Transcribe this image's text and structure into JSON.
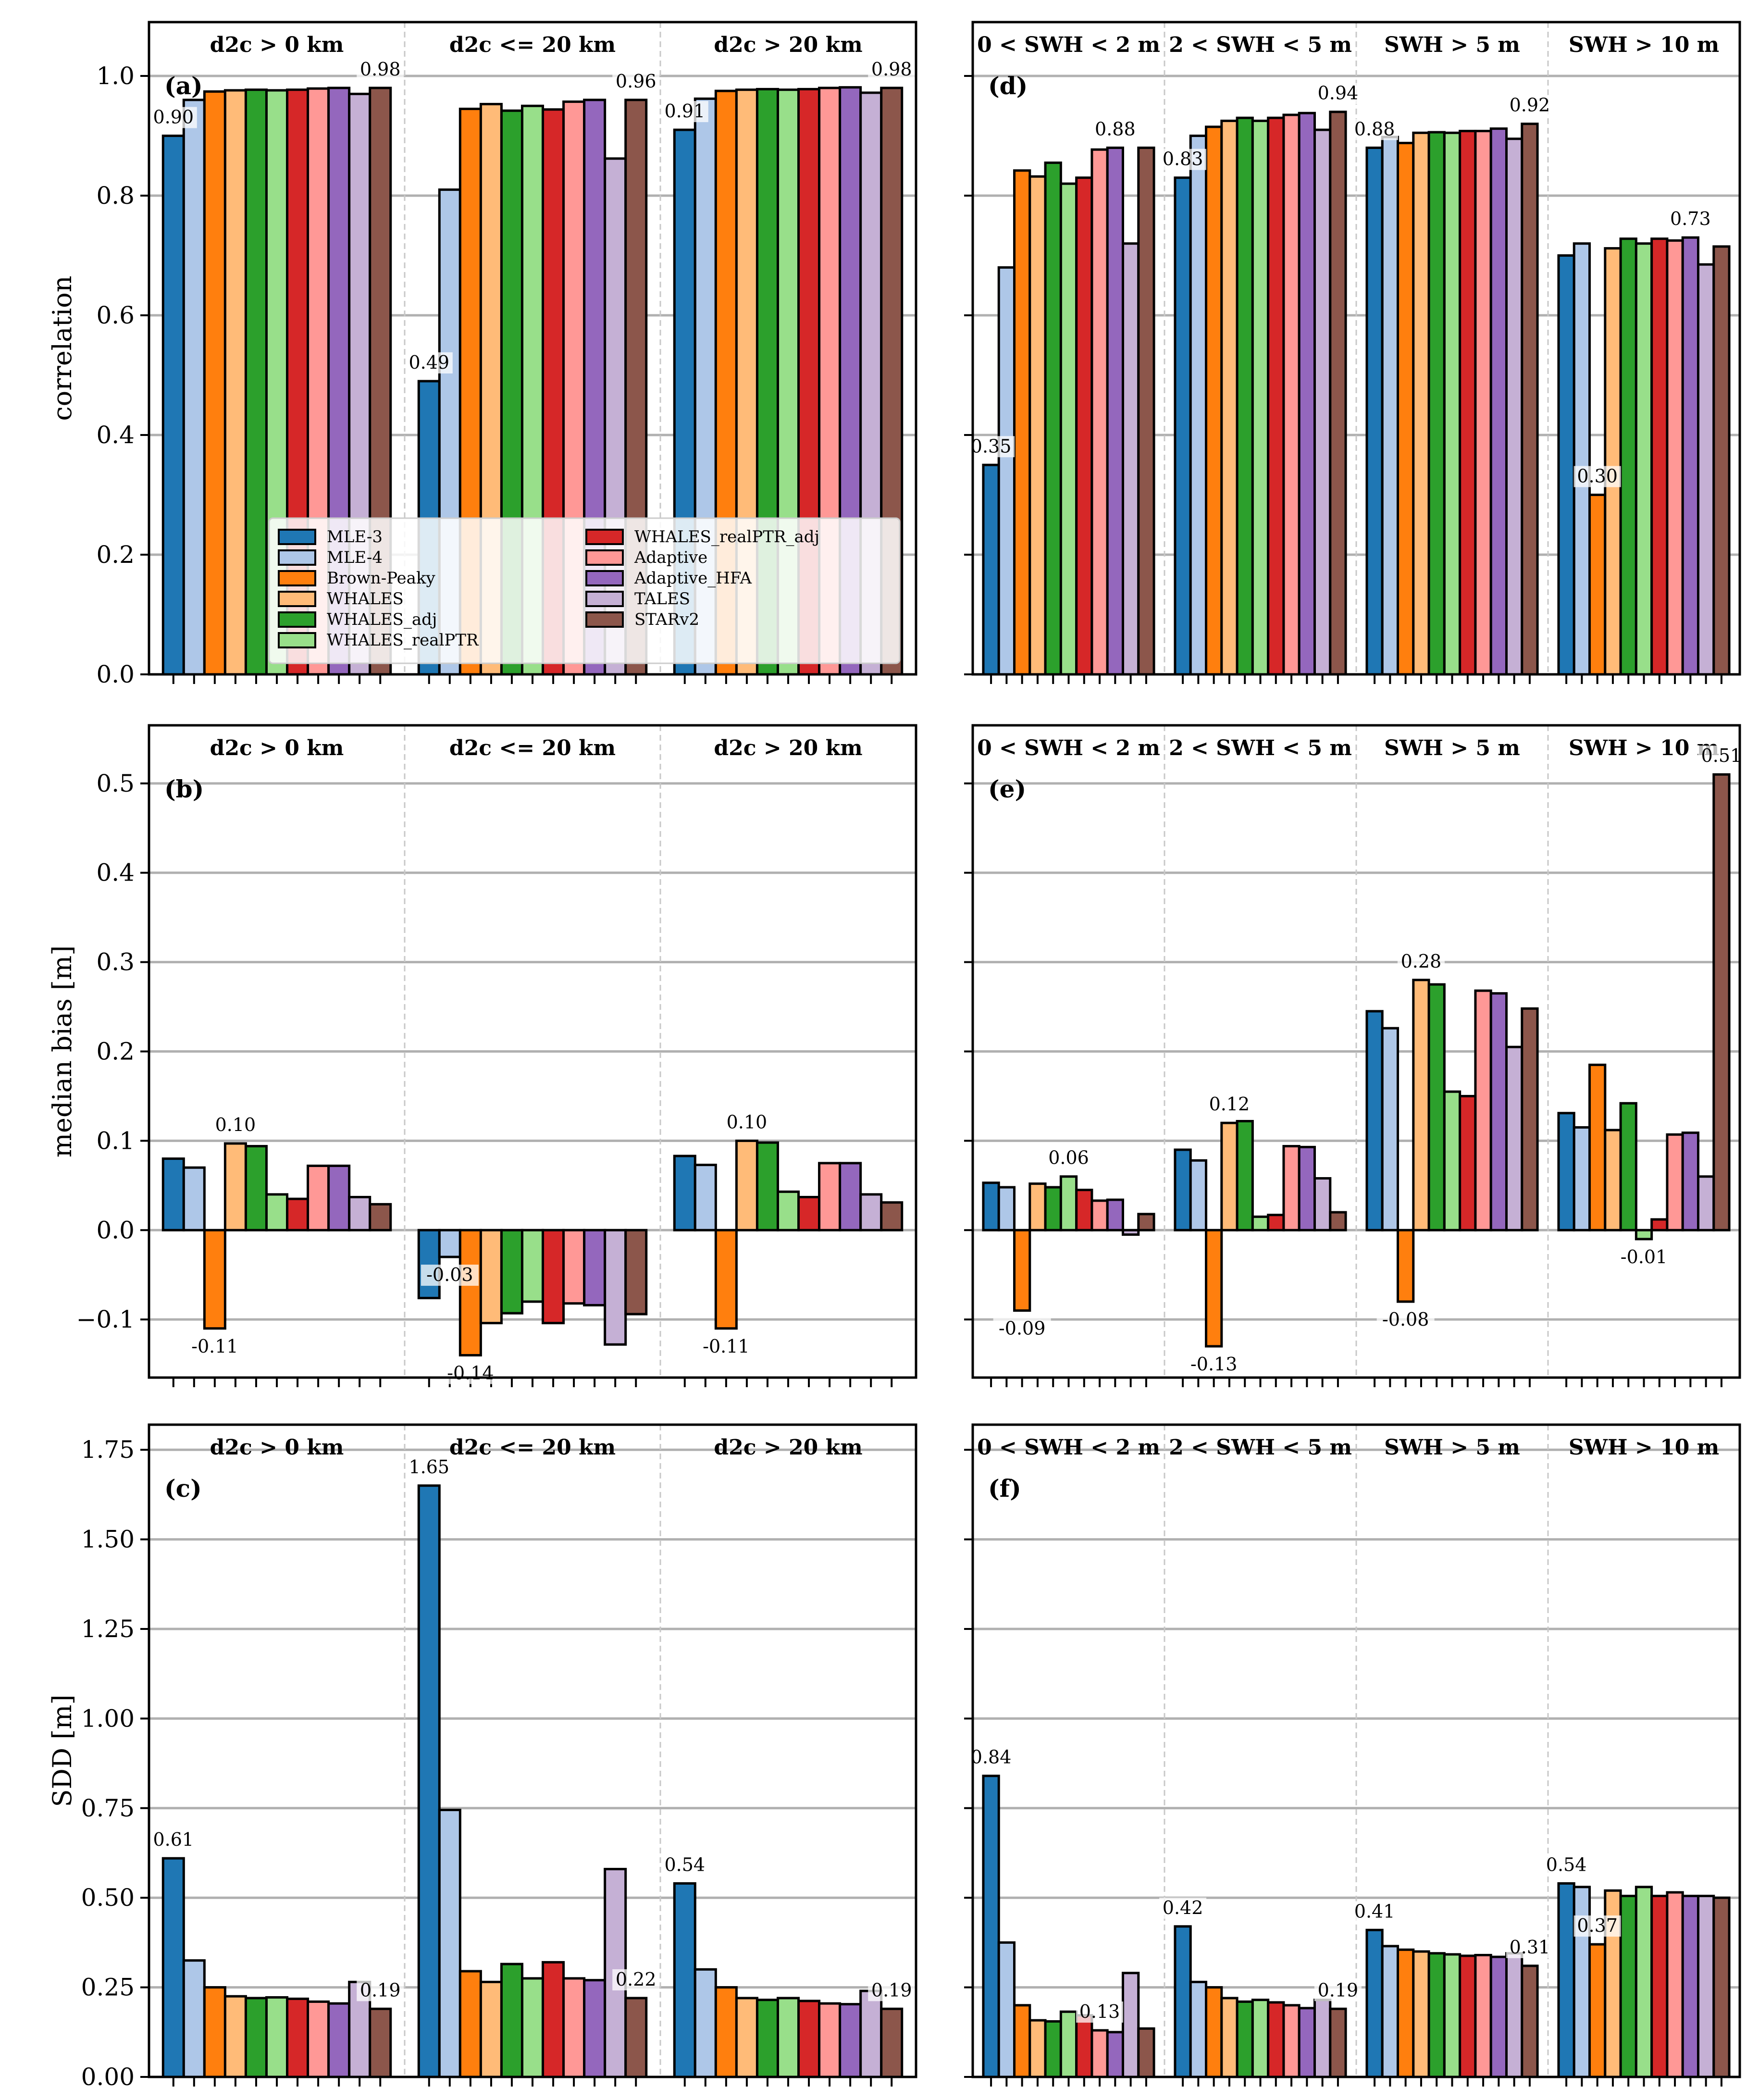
{
  "chart_data": [
    {
      "id": "a",
      "panel_label": "(a)",
      "type": "bar",
      "ylabel": "correlation",
      "ylim": [
        0,
        1.09
      ],
      "yticks": [
        0.0,
        0.2,
        0.4,
        0.6,
        0.8,
        1.0
      ],
      "ytick_labels": [
        "0.0",
        "0.2",
        "0.4",
        "0.6",
        "0.8",
        "1.0"
      ],
      "groups": [
        "d2c > 0 km",
        "d2c <= 20 km",
        "d2c > 20 km"
      ],
      "values": [
        [
          0.9,
          0.96,
          0.974,
          0.976,
          0.977,
          0.976,
          0.977,
          0.979,
          0.98,
          0.97,
          0.98
        ],
        [
          0.49,
          0.81,
          0.945,
          0.953,
          0.942,
          0.95,
          0.944,
          0.957,
          0.96,
          0.862,
          0.96
        ],
        [
          0.91,
          0.962,
          0.975,
          0.977,
          0.978,
          0.977,
          0.978,
          0.98,
          0.981,
          0.972,
          0.98
        ]
      ],
      "annotations": [
        {
          "group": 0,
          "bar": 0,
          "text": "0.90"
        },
        {
          "group": 0,
          "bar": 10,
          "text": "0.98"
        },
        {
          "group": 1,
          "bar": 0,
          "text": "0.49"
        },
        {
          "group": 1,
          "bar": 10,
          "text": "0.96"
        },
        {
          "group": 2,
          "bar": 0,
          "text": "0.91"
        },
        {
          "group": 2,
          "bar": 10,
          "text": "0.98"
        }
      ],
      "show_legend": true
    },
    {
      "id": "b",
      "panel_label": "(b)",
      "type": "bar",
      "ylabel": "median bias [m]",
      "ylim": [
        -0.165,
        0.565
      ],
      "yticks": [
        -0.1,
        0.0,
        0.1,
        0.2,
        0.3,
        0.4,
        0.5
      ],
      "ytick_labels": [
        "−0.1",
        "0.0",
        "0.1",
        "0.2",
        "0.3",
        "0.4",
        "0.5"
      ],
      "groups": [
        "d2c > 0 km",
        "d2c <= 20 km",
        "d2c > 20 km"
      ],
      "values": [
        [
          0.08,
          0.07,
          -0.11,
          0.097,
          0.094,
          0.04,
          0.035,
          0.072,
          0.072,
          0.037,
          0.029
        ],
        [
          -0.076,
          -0.03,
          -0.14,
          -0.104,
          -0.093,
          -0.08,
          -0.104,
          -0.082,
          -0.084,
          -0.128,
          -0.094
        ],
        [
          0.083,
          0.073,
          -0.11,
          0.1,
          0.098,
          0.043,
          0.037,
          0.075,
          0.075,
          0.04,
          0.031
        ]
      ],
      "annotations": [
        {
          "group": 0,
          "bar": 2,
          "text": "-0.11"
        },
        {
          "group": 0,
          "bar": 3,
          "text": "0.10"
        },
        {
          "group": 1,
          "bar": 1,
          "text": "-0.03"
        },
        {
          "group": 1,
          "bar": 2,
          "text": "-0.14"
        },
        {
          "group": 2,
          "bar": 2,
          "text": "-0.11"
        },
        {
          "group": 2,
          "bar": 3,
          "text": "0.10"
        }
      ]
    },
    {
      "id": "c",
      "panel_label": "(c)",
      "type": "bar",
      "ylabel": "SDD [m]",
      "ylim": [
        0,
        1.82
      ],
      "yticks": [
        0.0,
        0.25,
        0.5,
        0.75,
        1.0,
        1.25,
        1.5,
        1.75
      ],
      "ytick_labels": [
        "0.00",
        "0.25",
        "0.50",
        "0.75",
        "1.00",
        "1.25",
        "1.50",
        "1.75"
      ],
      "groups": [
        "d2c > 0 km",
        "d2c <= 20 km",
        "d2c > 20 km"
      ],
      "values": [
        [
          0.61,
          0.325,
          0.25,
          0.225,
          0.22,
          0.222,
          0.218,
          0.21,
          0.205,
          0.265,
          0.19
        ],
        [
          1.65,
          0.745,
          0.295,
          0.265,
          0.315,
          0.275,
          0.32,
          0.275,
          0.27,
          0.58,
          0.22
        ],
        [
          0.54,
          0.3,
          0.25,
          0.22,
          0.215,
          0.22,
          0.212,
          0.205,
          0.203,
          0.24,
          0.19
        ]
      ],
      "annotations": [
        {
          "group": 0,
          "bar": 0,
          "text": "0.61"
        },
        {
          "group": 0,
          "bar": 10,
          "text": "0.19"
        },
        {
          "group": 1,
          "bar": 0,
          "text": "1.65"
        },
        {
          "group": 1,
          "bar": 10,
          "text": "0.22"
        },
        {
          "group": 2,
          "bar": 0,
          "text": "0.54"
        },
        {
          "group": 2,
          "bar": 10,
          "text": "0.19"
        }
      ]
    },
    {
      "id": "d",
      "panel_label": "(d)",
      "type": "bar",
      "ylabel": "",
      "ylim": [
        0,
        1.09
      ],
      "yticks": [
        0.0,
        0.2,
        0.4,
        0.6,
        0.8,
        1.0
      ],
      "groups": [
        "0 < SWH < 2 m",
        "2 < SWH < 5 m",
        "SWH > 5 m",
        "SWH > 10 m"
      ],
      "values": [
        [
          0.35,
          0.68,
          0.842,
          0.832,
          0.855,
          0.82,
          0.83,
          0.877,
          0.88,
          0.72,
          0.88
        ],
        [
          0.83,
          0.9,
          0.915,
          0.925,
          0.93,
          0.925,
          0.93,
          0.935,
          0.938,
          0.91,
          0.94
        ],
        [
          0.88,
          0.898,
          0.888,
          0.905,
          0.906,
          0.905,
          0.908,
          0.908,
          0.912,
          0.895,
          0.92
        ],
        [
          0.7,
          0.72,
          0.3,
          0.712,
          0.728,
          0.72,
          0.728,
          0.725,
          0.73,
          0.685,
          0.715
        ]
      ],
      "annotations": [
        {
          "group": 0,
          "bar": 0,
          "text": "0.35"
        },
        {
          "group": 0,
          "bar": 8,
          "text": "0.88"
        },
        {
          "group": 1,
          "bar": 0,
          "text": "0.83"
        },
        {
          "group": 1,
          "bar": 10,
          "text": "0.94"
        },
        {
          "group": 2,
          "bar": 0,
          "text": "0.88"
        },
        {
          "group": 2,
          "bar": 10,
          "text": "0.92"
        },
        {
          "group": 3,
          "bar": 2,
          "text": "0.30"
        },
        {
          "group": 3,
          "bar": 8,
          "text": "0.73"
        }
      ]
    },
    {
      "id": "e",
      "panel_label": "(e)",
      "type": "bar",
      "ylabel": "",
      "ylim": [
        -0.165,
        0.565
      ],
      "yticks": [
        -0.1,
        0.0,
        0.1,
        0.2,
        0.3,
        0.4,
        0.5
      ],
      "groups": [
        "0 < SWH < 2 m",
        "2 < SWH < 5 m",
        "SWH > 5 m",
        "SWH > 10 m"
      ],
      "values": [
        [
          0.053,
          0.048,
          -0.09,
          0.052,
          0.048,
          0.06,
          0.045,
          0.033,
          0.034,
          -0.005,
          0.018
        ],
        [
          0.09,
          0.078,
          -0.13,
          0.12,
          0.122,
          0.015,
          0.017,
          0.094,
          0.093,
          0.058,
          0.02
        ],
        [
          0.245,
          0.226,
          -0.08,
          0.28,
          0.275,
          0.155,
          0.15,
          0.268,
          0.265,
          0.205,
          0.248
        ],
        [
          0.131,
          0.115,
          0.185,
          0.112,
          0.142,
          -0.01,
          0.012,
          0.107,
          0.109,
          0.06,
          0.51
        ]
      ],
      "annotations": [
        {
          "group": 0,
          "bar": 2,
          "text": "-0.09"
        },
        {
          "group": 0,
          "bar": 5,
          "text": "0.06"
        },
        {
          "group": 1,
          "bar": 2,
          "text": "-0.13"
        },
        {
          "group": 1,
          "bar": 3,
          "text": "0.12"
        },
        {
          "group": 2,
          "bar": 2,
          "text": "-0.08"
        },
        {
          "group": 2,
          "bar": 3,
          "text": "0.28"
        },
        {
          "group": 3,
          "bar": 5,
          "text": "-0.01"
        },
        {
          "group": 3,
          "bar": 10,
          "text": "0.51"
        }
      ]
    },
    {
      "id": "f",
      "panel_label": "(f)",
      "type": "bar",
      "ylabel": "",
      "ylim": [
        0,
        1.82
      ],
      "yticks": [
        0.0,
        0.25,
        0.5,
        0.75,
        1.0,
        1.25,
        1.5,
        1.75
      ],
      "groups": [
        "0 < SWH < 2 m",
        "2 < SWH < 5 m",
        "SWH > 5 m",
        "SWH > 10 m"
      ],
      "values": [
        [
          0.84,
          0.375,
          0.2,
          0.158,
          0.155,
          0.182,
          0.172,
          0.13,
          0.125,
          0.29,
          0.135
        ],
        [
          0.42,
          0.265,
          0.25,
          0.22,
          0.21,
          0.215,
          0.208,
          0.2,
          0.192,
          0.215,
          0.19
        ],
        [
          0.41,
          0.365,
          0.355,
          0.35,
          0.345,
          0.342,
          0.338,
          0.34,
          0.335,
          0.345,
          0.31
        ],
        [
          0.54,
          0.53,
          0.37,
          0.52,
          0.505,
          0.53,
          0.505,
          0.515,
          0.505,
          0.505,
          0.5
        ]
      ],
      "annotations": [
        {
          "group": 0,
          "bar": 0,
          "text": "0.84"
        },
        {
          "group": 0,
          "bar": 7,
          "text": "0.13"
        },
        {
          "group": 1,
          "bar": 0,
          "text": "0.42"
        },
        {
          "group": 1,
          "bar": 10,
          "text": "0.19"
        },
        {
          "group": 2,
          "bar": 0,
          "text": "0.41"
        },
        {
          "group": 2,
          "bar": 10,
          "text": "0.31"
        },
        {
          "group": 3,
          "bar": 0,
          "text": "0.54"
        },
        {
          "group": 3,
          "bar": 2,
          "text": "0.37"
        }
      ]
    }
  ],
  "legend": {
    "entries": [
      {
        "label": "MLE-3",
        "color": "#1f77b4"
      },
      {
        "label": "MLE-4",
        "color": "#aec7e8"
      },
      {
        "label": "Brown-Peaky",
        "color": "#ff7f0e"
      },
      {
        "label": "WHALES",
        "color": "#ffbb78"
      },
      {
        "label": "WHALES_adj",
        "color": "#2ca02c"
      },
      {
        "label": "WHALES_realPTR",
        "color": "#98df8a"
      },
      {
        "label": "WHALES_realPTR_adj",
        "color": "#d62728"
      },
      {
        "label": "Adaptive",
        "color": "#ff9896"
      },
      {
        "label": "Adaptive_HFA",
        "color": "#9467bd"
      },
      {
        "label": "TALES",
        "color": "#c5b0d5"
      },
      {
        "label": "STARv2",
        "color": "#8c564b"
      }
    ]
  }
}
